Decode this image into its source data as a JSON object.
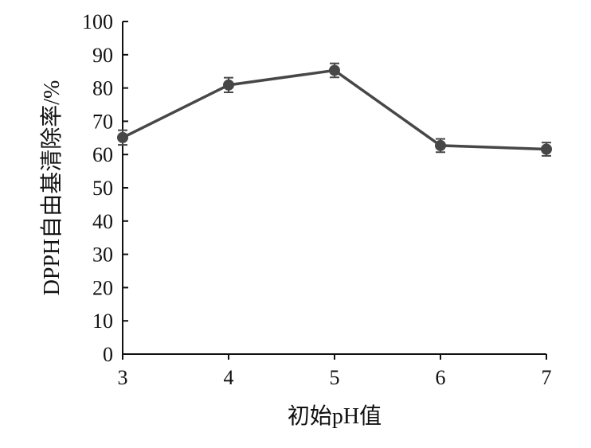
{
  "chart_data": {
    "type": "line",
    "title": "",
    "xlabel": "初始pH值",
    "ylabel": "DPPH自由基清除率/%",
    "x": [
      3,
      4,
      5,
      6,
      7
    ],
    "series": [
      {
        "values": [
          65.1,
          80.9,
          85.3,
          62.7,
          61.6
        ],
        "errors": [
          2.2,
          2.2,
          2.1,
          2.0,
          2.0
        ]
      }
    ],
    "xlim": [
      3,
      7
    ],
    "ylim": [
      0,
      100
    ],
    "xticks": [
      "3",
      "4",
      "5",
      "6",
      "7"
    ],
    "yticks": [
      "0",
      "10",
      "20",
      "30",
      "40",
      "50",
      "60",
      "70",
      "80",
      "90",
      "100"
    ],
    "grid": false,
    "legend": "none",
    "line_color": "#474747"
  }
}
